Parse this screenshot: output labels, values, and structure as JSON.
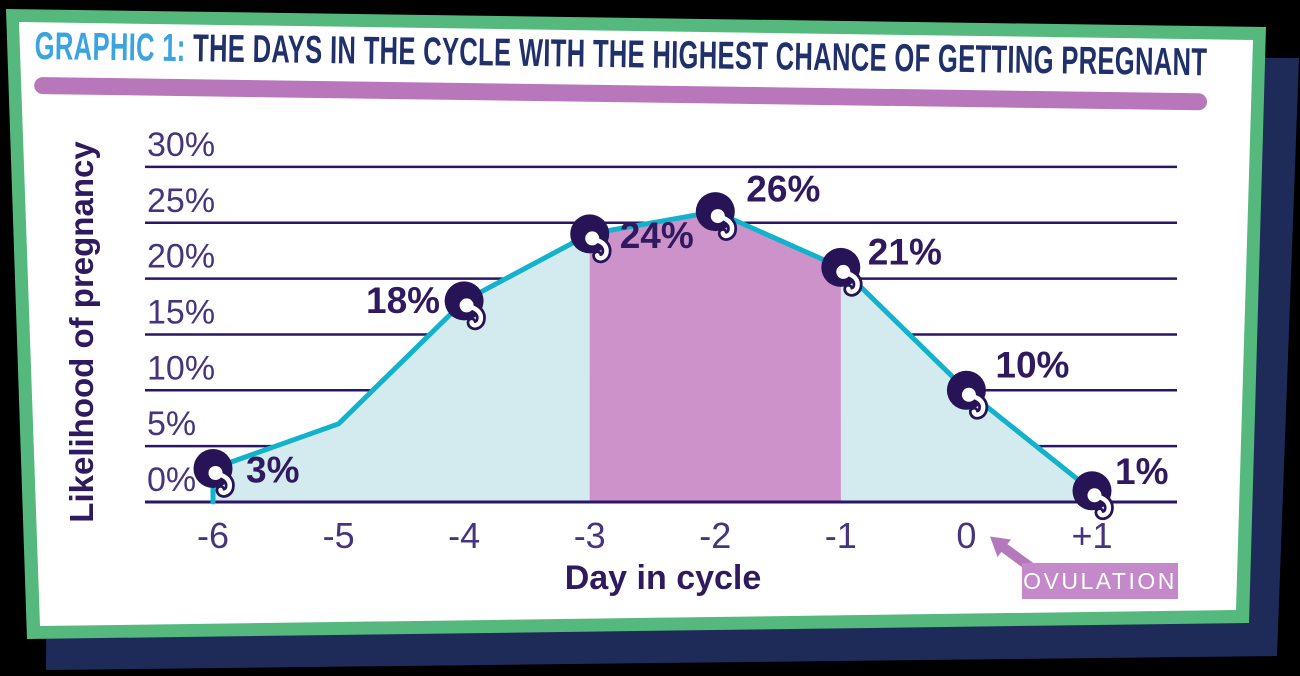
{
  "header": {
    "prefix": "GRAPHIC 1:",
    "title": "THE DAYS IN THE CYCLE WITH THE HIGHEST CHANCE OF GETTING PREGNANT"
  },
  "chart_data": {
    "type": "area",
    "title": "The days in the cycle with the highest chance of getting pregnant",
    "xlabel": "Day in cycle",
    "ylabel": "Likelihood of pregnancy",
    "x": [
      -6,
      -5,
      -4,
      -3,
      -2,
      -1,
      0,
      1
    ],
    "x_tick_labels": [
      "-6",
      "-5",
      "-4",
      "-3",
      "-2",
      "-1",
      "0",
      "+1"
    ],
    "y_tick_labels": [
      "0%",
      "5%",
      "10%",
      "15%",
      "20%",
      "25%",
      "30%"
    ],
    "ylim": [
      0,
      30
    ],
    "grid": true,
    "legend": "none",
    "points": [
      {
        "day": -6,
        "value": 3,
        "label": "3%",
        "labeled": true
      },
      {
        "day": -5,
        "value": 7,
        "label": "",
        "labeled": false
      },
      {
        "day": -4,
        "value": 18,
        "label": "18%",
        "labeled": true
      },
      {
        "day": -3,
        "value": 24,
        "label": "24%",
        "labeled": true
      },
      {
        "day": -2,
        "value": 26,
        "label": "26%",
        "labeled": true
      },
      {
        "day": -1,
        "value": 21,
        "label": "21%",
        "labeled": true
      },
      {
        "day": 0,
        "value": 10,
        "label": "10%",
        "labeled": true
      },
      {
        "day": 1,
        "value": 1,
        "label": "1%",
        "labeled": true
      }
    ],
    "highlight_region": {
      "from_day": -3,
      "to_day": -1
    },
    "annotation": {
      "label": "OVULATION",
      "points_to_day": 0
    }
  },
  "colors": {
    "page_bg": "#000000",
    "shadow_navy": "#1E2B58",
    "border_green": "#55B97E",
    "card_white": "#FFFFFF",
    "title_accent_blue": "#3BA3DE",
    "title_navy": "#20306B",
    "title_bar_purple": "#B977BB",
    "grid": "#2B1566",
    "line_teal": "#12B2CC",
    "area_fill": "#D3EBEF",
    "highlight_purple": "#CC92C9",
    "marker_navy": "#261457",
    "marker_glyph_white": "#FFFFFF",
    "value_label": "#2F195F",
    "tick_label": "#46357E",
    "axis_title": "#2E1A5E",
    "ovulation_box": "#C389C8",
    "ovulation_text": "#FFFFFF",
    "arrow_purple": "#B678BC"
  }
}
